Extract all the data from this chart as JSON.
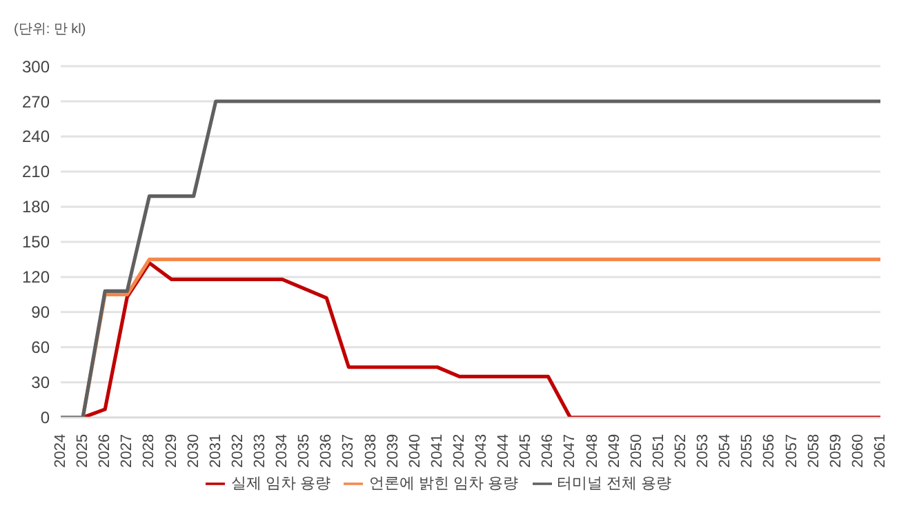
{
  "chart_data": {
    "type": "line",
    "ylabel": "(단위: 만 kl)",
    "categories": [
      "2024",
      "2025",
      "2026",
      "2027",
      "2028",
      "2029",
      "2030",
      "2031",
      "2032",
      "2033",
      "2034",
      "2035",
      "2036",
      "2037",
      "2038",
      "2039",
      "2040",
      "2041",
      "2042",
      "2043",
      "2044",
      "2045",
      "2046",
      "2047",
      "2048",
      "2049",
      "2050",
      "2051",
      "2052",
      "2053",
      "2054",
      "2055",
      "2056",
      "2057",
      "2058",
      "2059",
      "2060",
      "2061"
    ],
    "series": [
      {
        "name": "실제 임차 용량",
        "color": "#c00000",
        "values": [
          null,
          0,
          7,
          103,
          132,
          118,
          118,
          118,
          118,
          118,
          118,
          110,
          102,
          43,
          43,
          43,
          43,
          43,
          35,
          35,
          35,
          35,
          35,
          0,
          0,
          0,
          0,
          0,
          0,
          0,
          0,
          0,
          0,
          0,
          0,
          0,
          0,
          0
        ]
      },
      {
        "name": "언론에 밝힌 임차 용량",
        "color": "#f4884c",
        "values": [
          null,
          0,
          105,
          105,
          135,
          135,
          135,
          135,
          135,
          135,
          135,
          135,
          135,
          135,
          135,
          135,
          135,
          135,
          135,
          135,
          135,
          135,
          135,
          135,
          135,
          135,
          135,
          135,
          135,
          135,
          135,
          135,
          135,
          135,
          135,
          135,
          135,
          135
        ]
      },
      {
        "name": "터미널 전체 용량",
        "color": "#606060",
        "values": [
          0,
          0,
          108,
          108,
          189,
          189,
          189,
          270,
          270,
          270,
          270,
          270,
          270,
          270,
          270,
          270,
          270,
          270,
          270,
          270,
          270,
          270,
          270,
          270,
          270,
          270,
          270,
          270,
          270,
          270,
          270,
          270,
          270,
          270,
          270,
          270,
          270,
          270
        ]
      }
    ],
    "ylim": [
      0,
      300
    ],
    "yticks": [
      0,
      30,
      60,
      90,
      120,
      150,
      180,
      210,
      240,
      270,
      300
    ],
    "grid": "y",
    "legend": "bottom",
    "marker": "none",
    "line_style": "solid"
  }
}
